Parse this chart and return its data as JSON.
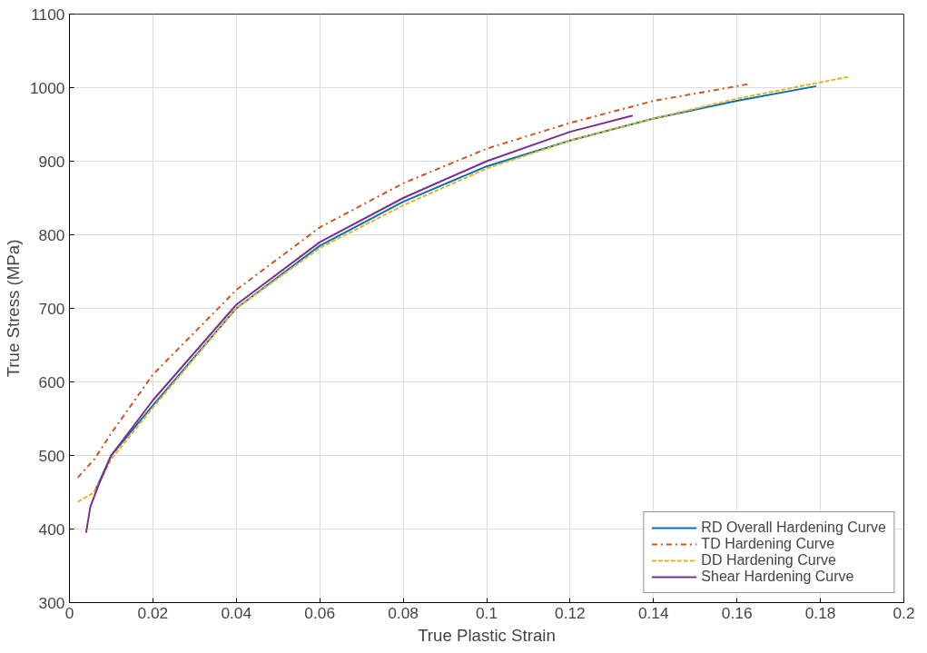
{
  "chart_data": {
    "type": "line",
    "xlabel": "True Plastic Strain",
    "ylabel": "True Stress (MPa)",
    "xlim": [
      0,
      0.2
    ],
    "ylim": [
      300,
      1100
    ],
    "xticks": [
      0,
      0.02,
      0.04,
      0.06,
      0.08,
      0.1,
      0.12,
      0.14,
      0.16,
      0.18,
      0.2
    ],
    "yticks": [
      300,
      400,
      500,
      600,
      700,
      800,
      900,
      1000,
      1100
    ],
    "grid": true,
    "legend": "bottom right",
    "series": [
      {
        "name": "RD Overall Hardening Curve",
        "color": "#0072bd",
        "line_style": "solid",
        "x": [
          0.006,
          0.01,
          0.02,
          0.04,
          0.06,
          0.08,
          0.1,
          0.12,
          0.14,
          0.16,
          0.179
        ],
        "values": [
          450,
          500,
          568,
          700,
          785,
          845,
          893,
          928,
          958,
          982,
          1002
        ]
      },
      {
        "name": "TD Hardening Curve",
        "color": "#d95319",
        "line_style": "dashdot",
        "x": [
          0.002,
          0.006,
          0.01,
          0.02,
          0.04,
          0.06,
          0.08,
          0.1,
          0.12,
          0.14,
          0.163
        ],
        "values": [
          470,
          495,
          530,
          610,
          725,
          810,
          870,
          917,
          952,
          982,
          1005
        ]
      },
      {
        "name": "DD Hardening Curve",
        "color": "#edb120",
        "line_style": "dashed",
        "x": [
          0.002,
          0.006,
          0.01,
          0.02,
          0.04,
          0.06,
          0.08,
          0.1,
          0.12,
          0.14,
          0.16,
          0.187
        ],
        "values": [
          437,
          450,
          495,
          565,
          700,
          782,
          840,
          890,
          928,
          958,
          985,
          1015
        ]
      },
      {
        "name": "Shear Hardening Curve",
        "color": "#7e2f8e",
        "line_style": "solid",
        "x": [
          0.004,
          0.005,
          0.007,
          0.01,
          0.02,
          0.04,
          0.06,
          0.08,
          0.1,
          0.12,
          0.135
        ],
        "values": [
          395,
          430,
          460,
          500,
          575,
          705,
          790,
          850,
          900,
          940,
          962
        ]
      }
    ]
  }
}
